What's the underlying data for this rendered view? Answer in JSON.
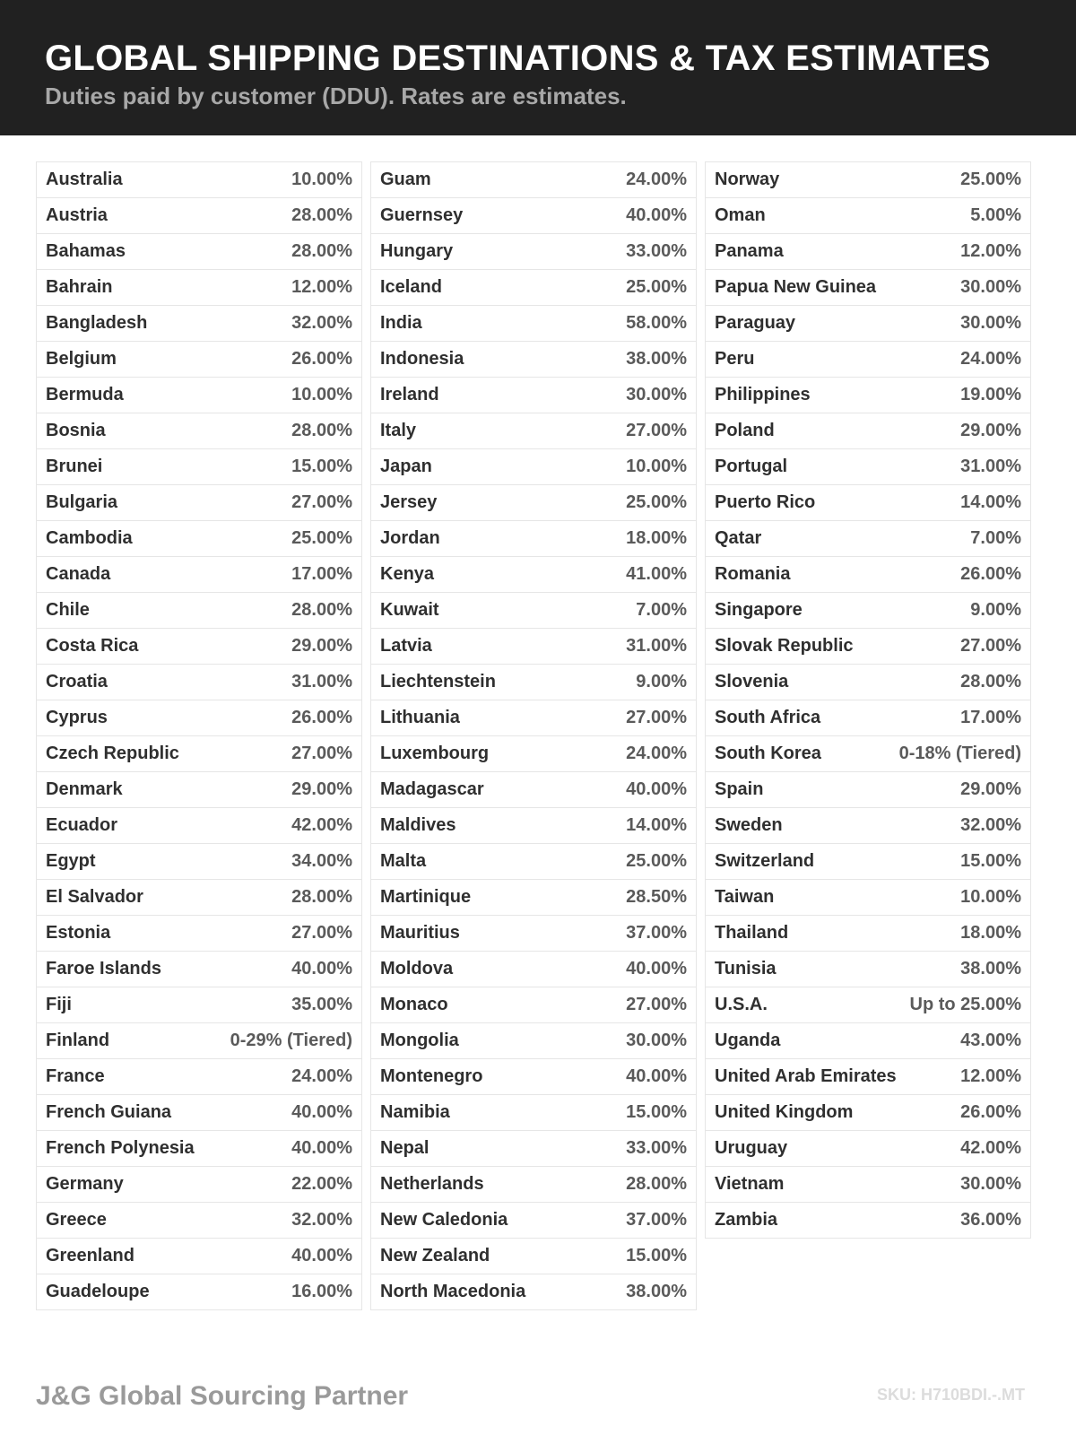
{
  "header": {
    "title": "GLOBAL SHIPPING DESTINATIONS & TAX ESTIMATES",
    "subtitle": "Duties paid by customer (DDU). Rates are estimates."
  },
  "columns": [
    [
      [
        "Australia",
        "10.00%"
      ],
      [
        "Austria",
        "28.00%"
      ],
      [
        "Bahamas",
        "28.00%"
      ],
      [
        "Bahrain",
        "12.00%"
      ],
      [
        "Bangladesh",
        "32.00%"
      ],
      [
        "Belgium",
        "26.00%"
      ],
      [
        "Bermuda",
        "10.00%"
      ],
      [
        "Bosnia",
        "28.00%"
      ],
      [
        "Brunei",
        "15.00%"
      ],
      [
        "Bulgaria",
        "27.00%"
      ],
      [
        "Cambodia",
        "25.00%"
      ],
      [
        "Canada",
        "17.00%"
      ],
      [
        "Chile",
        "28.00%"
      ],
      [
        "Costa Rica",
        "29.00%"
      ],
      [
        "Croatia",
        "31.00%"
      ],
      [
        "Cyprus",
        "26.00%"
      ],
      [
        "Czech Republic",
        "27.00%"
      ],
      [
        "Denmark",
        "29.00%"
      ],
      [
        "Ecuador",
        "42.00%"
      ],
      [
        "Egypt",
        "34.00%"
      ],
      [
        "El Salvador",
        "28.00%"
      ],
      [
        "Estonia",
        "27.00%"
      ],
      [
        "Faroe Islands",
        "40.00%"
      ],
      [
        "Fiji",
        "35.00%"
      ],
      [
        "Finland",
        "0-29% (Tiered)"
      ],
      [
        "France",
        "24.00%"
      ],
      [
        "French Guiana",
        "40.00%"
      ],
      [
        "French Polynesia",
        "40.00%"
      ],
      [
        "Germany",
        "22.00%"
      ],
      [
        "Greece",
        "32.00%"
      ],
      [
        "Greenland",
        "40.00%"
      ],
      [
        "Guadeloupe",
        "16.00%"
      ]
    ],
    [
      [
        "Guam",
        "24.00%"
      ],
      [
        "Guernsey",
        "40.00%"
      ],
      [
        "Hungary",
        "33.00%"
      ],
      [
        "Iceland",
        "25.00%"
      ],
      [
        "India",
        "58.00%"
      ],
      [
        "Indonesia",
        "38.00%"
      ],
      [
        "Ireland",
        "30.00%"
      ],
      [
        "Italy",
        "27.00%"
      ],
      [
        "Japan",
        "10.00%"
      ],
      [
        "Jersey",
        "25.00%"
      ],
      [
        "Jordan",
        "18.00%"
      ],
      [
        "Kenya",
        "41.00%"
      ],
      [
        "Kuwait",
        "7.00%"
      ],
      [
        "Latvia",
        "31.00%"
      ],
      [
        "Liechtenstein",
        "9.00%"
      ],
      [
        "Lithuania",
        "27.00%"
      ],
      [
        "Luxembourg",
        "24.00%"
      ],
      [
        "Madagascar",
        "40.00%"
      ],
      [
        "Maldives",
        "14.00%"
      ],
      [
        "Malta",
        "25.00%"
      ],
      [
        "Martinique",
        "28.50%"
      ],
      [
        "Mauritius",
        "37.00%"
      ],
      [
        "Moldova",
        "40.00%"
      ],
      [
        "Monaco",
        "27.00%"
      ],
      [
        "Mongolia",
        "30.00%"
      ],
      [
        "Montenegro",
        "40.00%"
      ],
      [
        "Namibia",
        "15.00%"
      ],
      [
        "Nepal",
        "33.00%"
      ],
      [
        "Netherlands",
        "28.00%"
      ],
      [
        "New Caledonia",
        "37.00%"
      ],
      [
        "New Zealand",
        "15.00%"
      ],
      [
        "North Macedonia",
        "38.00%"
      ]
    ],
    [
      [
        "Norway",
        "25.00%"
      ],
      [
        "Oman",
        "5.00%"
      ],
      [
        "Panama",
        "12.00%"
      ],
      [
        "Papua New Guinea",
        "30.00%"
      ],
      [
        "Paraguay",
        "30.00%"
      ],
      [
        "Peru",
        "24.00%"
      ],
      [
        "Philippines",
        "19.00%"
      ],
      [
        "Poland",
        "29.00%"
      ],
      [
        "Portugal",
        "31.00%"
      ],
      [
        "Puerto Rico",
        "14.00%"
      ],
      [
        "Qatar",
        "7.00%"
      ],
      [
        "Romania",
        "26.00%"
      ],
      [
        "Singapore",
        "9.00%"
      ],
      [
        "Slovak Republic",
        "27.00%"
      ],
      [
        "Slovenia",
        "28.00%"
      ],
      [
        "South Africa",
        "17.00%"
      ],
      [
        "South Korea",
        "0-18% (Tiered)"
      ],
      [
        "Spain",
        "29.00%"
      ],
      [
        "Sweden",
        "32.00%"
      ],
      [
        "Switzerland",
        "15.00%"
      ],
      [
        "Taiwan",
        "10.00%"
      ],
      [
        "Thailand",
        "18.00%"
      ],
      [
        "Tunisia",
        "38.00%"
      ],
      [
        "U.S.A.",
        "Up to 25.00%"
      ],
      [
        "Uganda",
        "43.00%"
      ],
      [
        "United Arab Emirates",
        "12.00%"
      ],
      [
        "United Kingdom",
        "26.00%"
      ],
      [
        "Uruguay",
        "42.00%"
      ],
      [
        "Vietnam",
        "30.00%"
      ],
      [
        "Zambia",
        "36.00%"
      ]
    ]
  ],
  "footer": {
    "brand": "J&G Global Sourcing Partner",
    "sku": "SKU: H710BDI.-.MT"
  }
}
